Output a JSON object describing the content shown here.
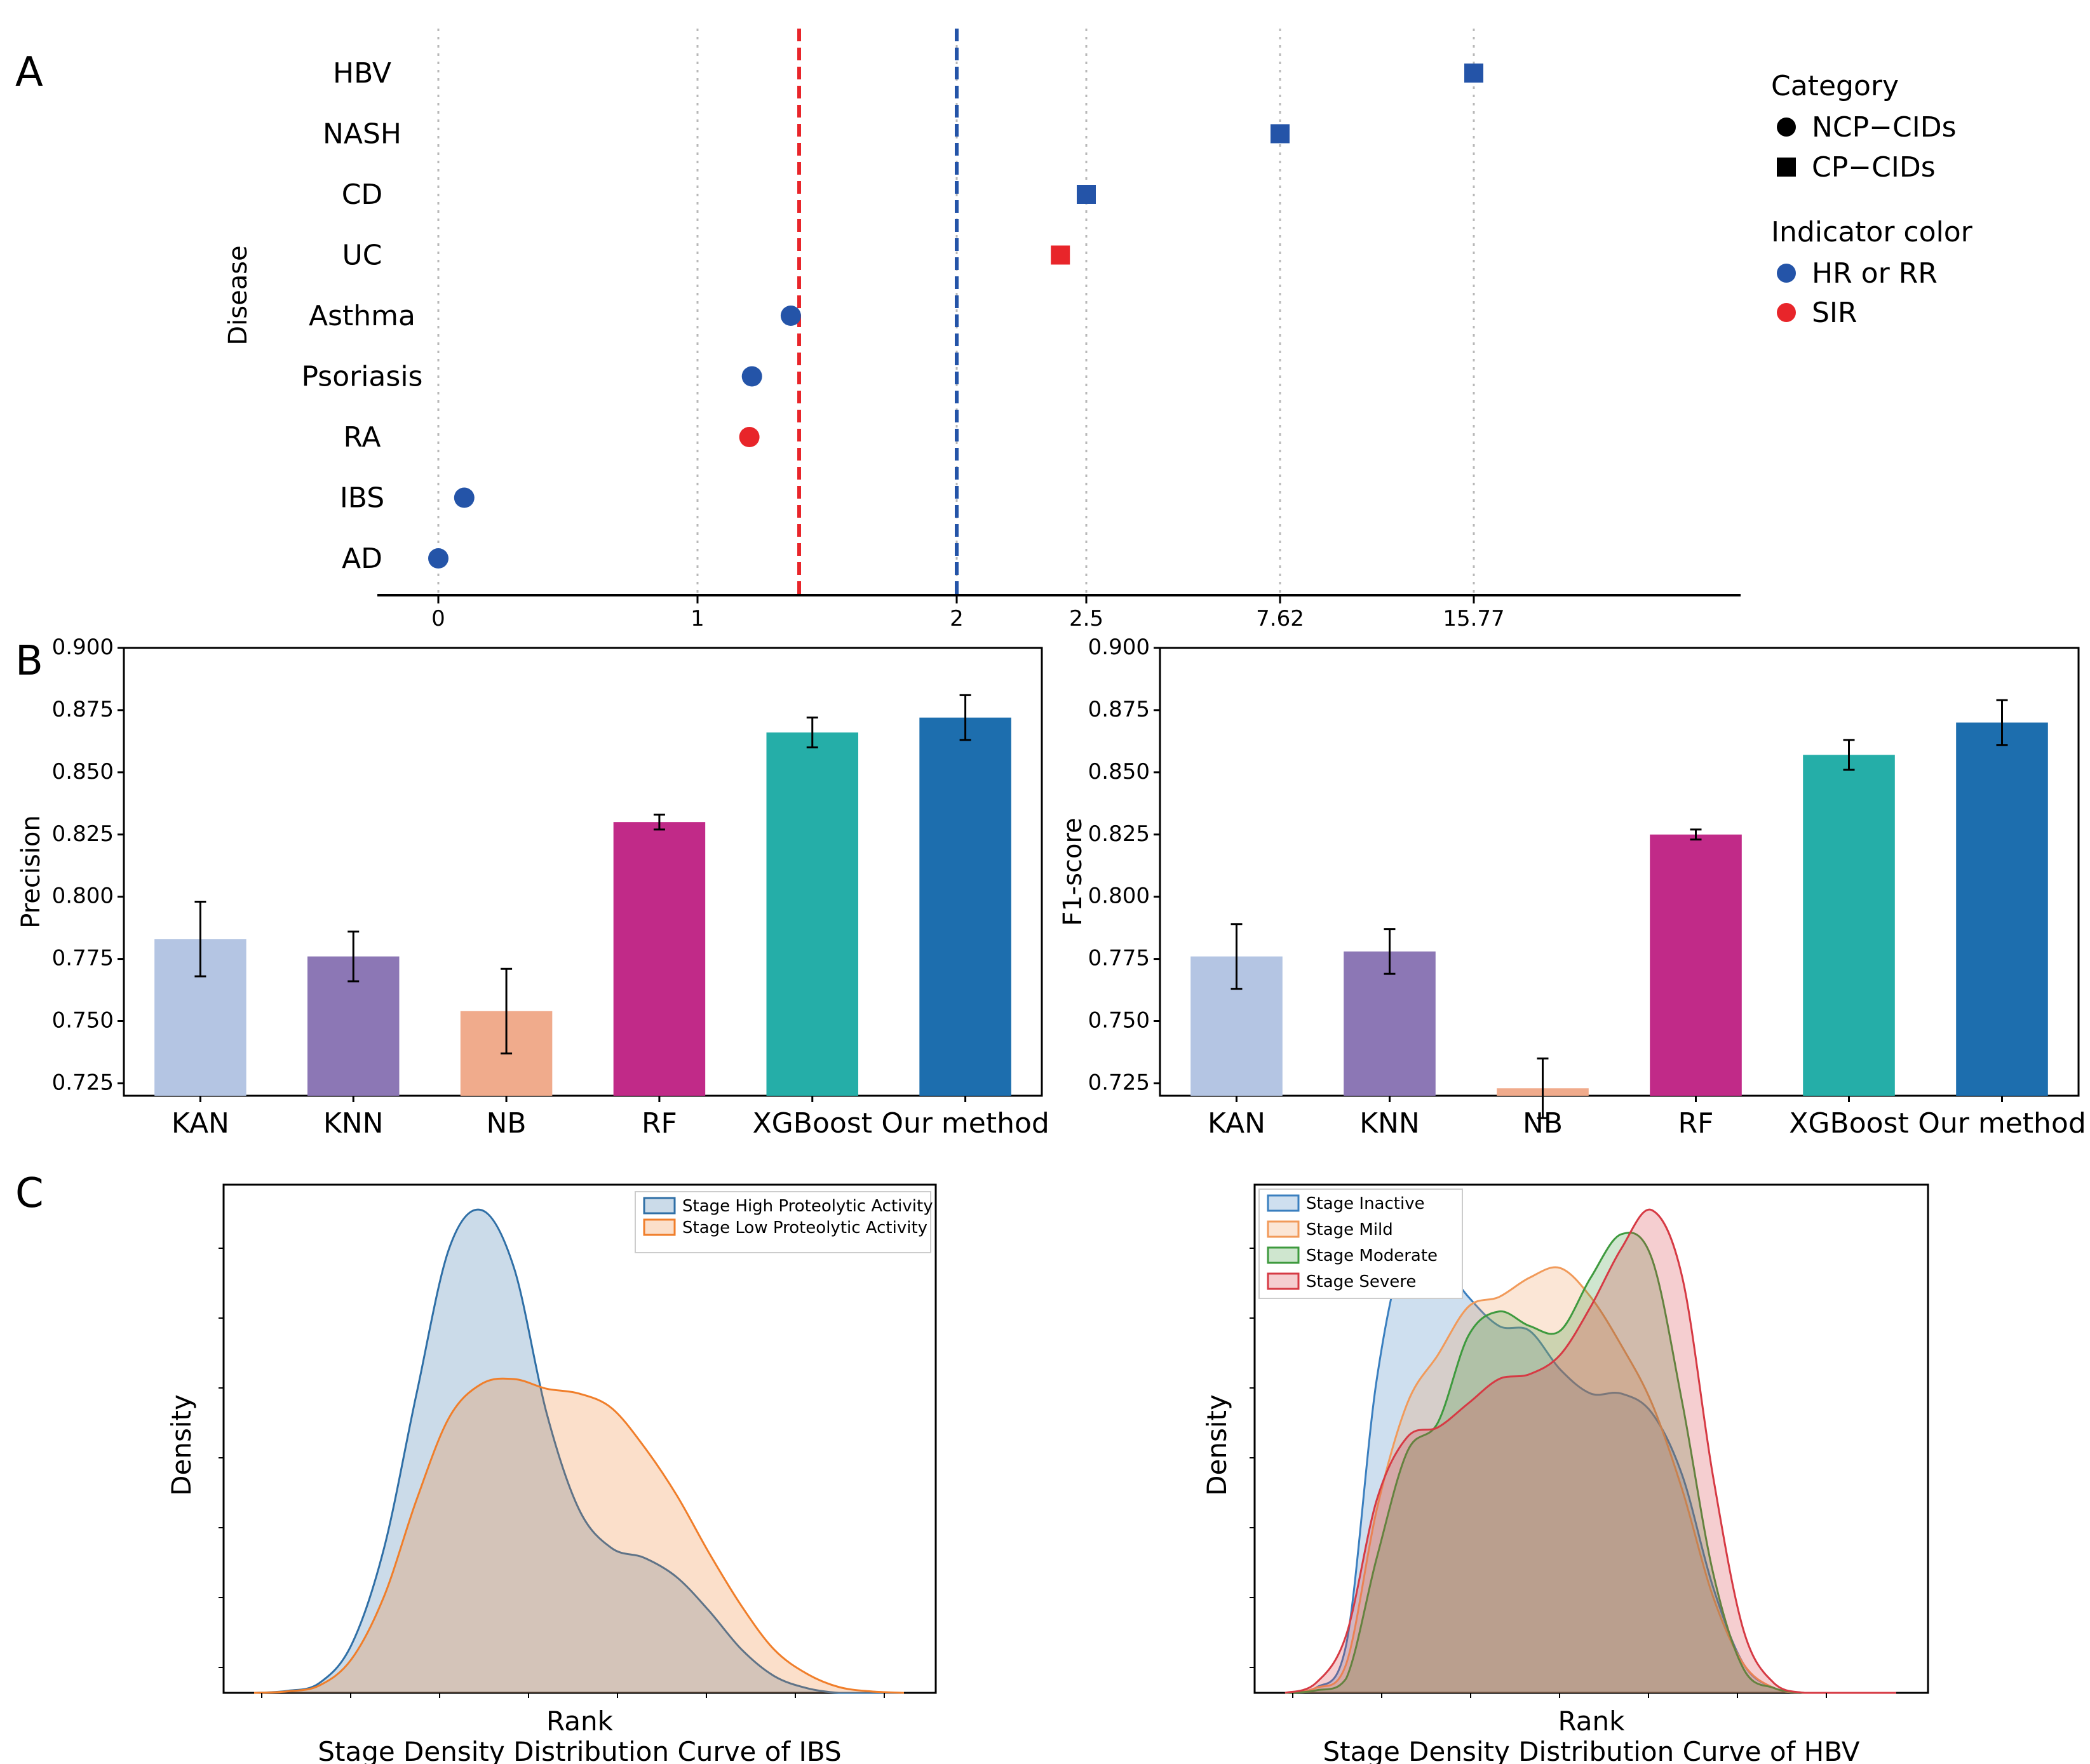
{
  "panel_labels": {
    "a": "A",
    "b": "B",
    "c": "C"
  },
  "colors": {
    "blue": "#2454a8",
    "red": "#e8252a",
    "kan": "#b4c5e3",
    "knn": "#8c77b5",
    "nb": "#f0ab8c",
    "rf": "#c12a88",
    "xgb": "#25aea8",
    "ours": "#1d6eae",
    "ibs_high": "#2f6fa6",
    "ibs_low": "#f07e2a",
    "inactive": "#3a7fbf",
    "mild": "#f19a5a",
    "moderate": "#3e9a3e",
    "severe": "#d63a44"
  },
  "chart_data": [
    {
      "id": "A",
      "type": "scatter",
      "ylabel": "Disease",
      "x_tick_labels": [
        "0",
        "1",
        "2",
        "2.5",
        "7.62",
        "15.77"
      ],
      "reference_lines": [
        {
          "position": "between 1 and 2 (approx. 1.4)",
          "color": "red",
          "style": "dashed"
        },
        {
          "position": "2",
          "color": "blue",
          "style": "dashed"
        }
      ],
      "points": [
        {
          "disease": "HBV",
          "value": 15.77,
          "category": "CP-CIDs",
          "indicator": "HR or RR"
        },
        {
          "disease": "NASH",
          "value": 7.62,
          "category": "CP-CIDs",
          "indicator": "HR or RR"
        },
        {
          "disease": "CD",
          "value": 2.5,
          "category": "CP-CIDs",
          "indicator": "HR or RR"
        },
        {
          "disease": "UC",
          "value": 2.4,
          "category": "CP-CIDs",
          "indicator": "SIR"
        },
        {
          "disease": "Asthma",
          "value": 1.36,
          "category": "NCP-CIDs",
          "indicator": "HR or RR"
        },
        {
          "disease": "Psoriasis",
          "value": 1.21,
          "category": "NCP-CIDs",
          "indicator": "HR or RR"
        },
        {
          "disease": "RA",
          "value": 1.2,
          "category": "NCP-CIDs",
          "indicator": "SIR"
        },
        {
          "disease": "IBS",
          "value": 0.1,
          "category": "NCP-CIDs",
          "indicator": "HR or RR"
        },
        {
          "disease": "AD",
          "value": 0.0,
          "category": "NCP-CIDs",
          "indicator": "HR or RR"
        }
      ],
      "legend": {
        "category_title": "Category",
        "categories": [
          "NCP−CIDs",
          "CP−CIDs"
        ],
        "indicator_title": "Indicator color",
        "indicators": [
          "HR or RR",
          "SIR"
        ]
      }
    },
    {
      "id": "B-left",
      "type": "bar",
      "ylabel": "Precision",
      "ylim": [
        0.72,
        0.9
      ],
      "yticks": [
        "0.725",
        "0.750",
        "0.775",
        "0.800",
        "0.825",
        "0.850",
        "0.875",
        "0.900"
      ],
      "categories": [
        "KAN",
        "KNN",
        "NB",
        "RF",
        "XGBoost",
        "Our method"
      ],
      "values": [
        0.783,
        0.776,
        0.754,
        0.83,
        0.866,
        0.872
      ],
      "errors": [
        0.015,
        0.01,
        0.017,
        0.003,
        0.006,
        0.009
      ]
    },
    {
      "id": "B-right",
      "type": "bar",
      "ylabel": "F1-score",
      "ylim": [
        0.72,
        0.9
      ],
      "yticks": [
        "0.725",
        "0.750",
        "0.775",
        "0.800",
        "0.825",
        "0.850",
        "0.875",
        "0.900"
      ],
      "categories": [
        "KAN",
        "KNN",
        "NB",
        "RF",
        "XGBoost",
        "Our method"
      ],
      "values": [
        0.776,
        0.778,
        0.723,
        0.825,
        0.857,
        0.87
      ],
      "errors": [
        0.013,
        0.009,
        0.012,
        0.002,
        0.006,
        0.009
      ]
    },
    {
      "id": "C-left",
      "type": "area",
      "title": "Stage Density Distribution Curve of IBS",
      "xlabel": "Rank",
      "ylabel": "Density",
      "series": [
        {
          "name": "Stage High Proteolytic Activity",
          "x": [
            0,
            0.05,
            0.1,
            0.15,
            0.2,
            0.25,
            0.3,
            0.35,
            0.4,
            0.45,
            0.5,
            0.55,
            0.6,
            0.65,
            0.7,
            0.75,
            0.8,
            0.85,
            0.9,
            0.95,
            1.0
          ],
          "density": [
            0.0,
            0.004,
            0.02,
            0.1,
            0.3,
            0.62,
            0.92,
            1.0,
            0.88,
            0.58,
            0.38,
            0.3,
            0.28,
            0.24,
            0.17,
            0.09,
            0.035,
            0.01,
            0.0,
            0.0,
            0.0
          ]
        },
        {
          "name": "Stage Low  Proteolytic Activity",
          "x": [
            0,
            0.05,
            0.1,
            0.15,
            0.2,
            0.25,
            0.3,
            0.35,
            0.4,
            0.45,
            0.5,
            0.55,
            0.6,
            0.65,
            0.7,
            0.75,
            0.8,
            0.85,
            0.9,
            0.95,
            1.0
          ],
          "density": [
            0.0,
            0.003,
            0.015,
            0.07,
            0.2,
            0.4,
            0.57,
            0.64,
            0.65,
            0.63,
            0.62,
            0.59,
            0.51,
            0.41,
            0.29,
            0.18,
            0.09,
            0.04,
            0.012,
            0.003,
            0.0
          ]
        }
      ]
    },
    {
      "id": "C-right",
      "type": "area",
      "title": "Stage Density Distribution Curve of HBV",
      "xlabel": "Rank",
      "ylabel": "Density",
      "series": [
        {
          "name": "Stage Inactive",
          "x": [
            0,
            0.05,
            0.1,
            0.15,
            0.2,
            0.25,
            0.3,
            0.35,
            0.4,
            0.45,
            0.5,
            0.55,
            0.6,
            0.65,
            0.7,
            0.75,
            0.8,
            0.85,
            0.9,
            0.95,
            1.0
          ],
          "density": [
            0.0,
            0.01,
            0.1,
            0.65,
            0.93,
            0.9,
            0.82,
            0.76,
            0.75,
            0.67,
            0.62,
            0.62,
            0.58,
            0.45,
            0.22,
            0.06,
            0.01,
            0.0,
            0.0,
            0.0,
            0.0
          ]
        },
        {
          "name": "Stage Mild",
          "x": [
            0,
            0.05,
            0.1,
            0.15,
            0.2,
            0.25,
            0.3,
            0.35,
            0.4,
            0.45,
            0.5,
            0.55,
            0.6,
            0.65,
            0.7,
            0.75,
            0.8,
            0.85,
            0.9,
            0.95,
            1.0
          ],
          "density": [
            0.0,
            0.01,
            0.06,
            0.38,
            0.6,
            0.7,
            0.8,
            0.82,
            0.86,
            0.88,
            0.82,
            0.72,
            0.6,
            0.42,
            0.2,
            0.06,
            0.01,
            0.0,
            0.0,
            0.0,
            0.0
          ]
        },
        {
          "name": "Stage Moderate",
          "x": [
            0,
            0.05,
            0.1,
            0.15,
            0.2,
            0.25,
            0.3,
            0.35,
            0.4,
            0.45,
            0.5,
            0.55,
            0.6,
            0.65,
            0.7,
            0.75,
            0.8,
            0.85,
            0.9,
            0.95,
            1.0
          ],
          "density": [
            0.0,
            0.005,
            0.03,
            0.28,
            0.5,
            0.56,
            0.74,
            0.79,
            0.76,
            0.75,
            0.86,
            0.95,
            0.9,
            0.6,
            0.25,
            0.05,
            0.01,
            0.0,
            0.0,
            0.0,
            0.0
          ]
        },
        {
          "name": "Stage Severe",
          "x": [
            0,
            0.05,
            0.1,
            0.15,
            0.2,
            0.25,
            0.3,
            0.35,
            0.4,
            0.45,
            0.5,
            0.55,
            0.6,
            0.65,
            0.7,
            0.75,
            0.8,
            0.85,
            0.9,
            0.95,
            1.0
          ],
          "density": [
            0.0,
            0.02,
            0.12,
            0.4,
            0.53,
            0.55,
            0.6,
            0.65,
            0.66,
            0.7,
            0.8,
            0.92,
            1.0,
            0.86,
            0.45,
            0.13,
            0.02,
            0.0,
            0.0,
            0.0,
            0.0
          ]
        }
      ]
    }
  ]
}
